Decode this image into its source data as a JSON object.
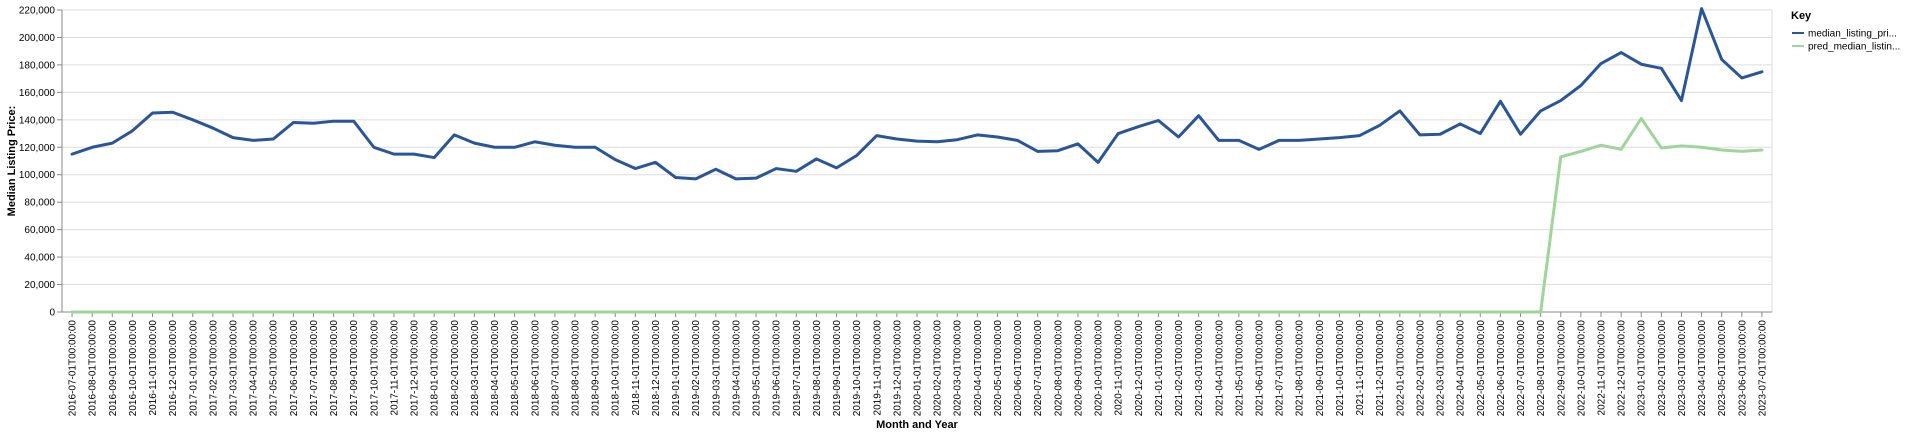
{
  "chart_data": {
    "type": "line",
    "xlabel": "Month and Year",
    "ylabel": "Median Listing Price:",
    "ylim": [
      0,
      220000
    ],
    "y_ticks": [
      0,
      20000,
      40000,
      60000,
      80000,
      100000,
      120000,
      140000,
      160000,
      180000,
      200000,
      220000
    ],
    "y_tick_labels": [
      "0",
      "20,000",
      "40,000",
      "60,000",
      "80,000",
      "100,000",
      "120,000",
      "140,000",
      "160,000",
      "180,000",
      "200,000",
      "220,000"
    ],
    "grid": true,
    "legend": {
      "title": "Key",
      "position": "right"
    },
    "x": [
      "2016-07-01T00:00:00",
      "2016-08-01T00:00:00",
      "2016-09-01T00:00:00",
      "2016-10-01T00:00:00",
      "2016-11-01T00:00:00",
      "2016-12-01T00:00:00",
      "2017-01-01T00:00:00",
      "2017-02-01T00:00:00",
      "2017-03-01T00:00:00",
      "2017-04-01T00:00:00",
      "2017-05-01T00:00:00",
      "2017-06-01T00:00:00",
      "2017-07-01T00:00:00",
      "2017-08-01T00:00:00",
      "2017-09-01T00:00:00",
      "2017-10-01T00:00:00",
      "2017-11-01T00:00:00",
      "2017-12-01T00:00:00",
      "2018-01-01T00:00:00",
      "2018-02-01T00:00:00",
      "2018-03-01T00:00:00",
      "2018-04-01T00:00:00",
      "2018-05-01T00:00:00",
      "2018-06-01T00:00:00",
      "2018-07-01T00:00:00",
      "2018-08-01T00:00:00",
      "2018-09-01T00:00:00",
      "2018-10-01T00:00:00",
      "2018-11-01T00:00:00",
      "2018-12-01T00:00:00",
      "2019-01-01T00:00:00",
      "2019-02-01T00:00:00",
      "2019-03-01T00:00:00",
      "2019-04-01T00:00:00",
      "2019-05-01T00:00:00",
      "2019-06-01T00:00:00",
      "2019-07-01T00:00:00",
      "2019-08-01T00:00:00",
      "2019-09-01T00:00:00",
      "2019-10-01T00:00:00",
      "2019-11-01T00:00:00",
      "2019-12-01T00:00:00",
      "2020-01-01T00:00:00",
      "2020-02-01T00:00:00",
      "2020-03-01T00:00:00",
      "2020-04-01T00:00:00",
      "2020-05-01T00:00:00",
      "2020-06-01T00:00:00",
      "2020-07-01T00:00:00",
      "2020-08-01T00:00:00",
      "2020-09-01T00:00:00",
      "2020-10-01T00:00:00",
      "2020-11-01T00:00:00",
      "2020-12-01T00:00:00",
      "2021-01-01T00:00:00",
      "2021-02-01T00:00:00",
      "2021-03-01T00:00:00",
      "2021-04-01T00:00:00",
      "2021-05-01T00:00:00",
      "2021-06-01T00:00:00",
      "2021-07-01T00:00:00",
      "2021-08-01T00:00:00",
      "2021-09-01T00:00:00",
      "2021-10-01T00:00:00",
      "2021-11-01T00:00:00",
      "2021-12-01T00:00:00",
      "2022-01-01T00:00:00",
      "2022-02-01T00:00:00",
      "2022-03-01T00:00:00",
      "2022-04-01T00:00:00",
      "2022-05-01T00:00:00",
      "2022-06-01T00:00:00",
      "2022-07-01T00:00:00",
      "2022-08-01T00:00:00",
      "2022-09-01T00:00:00",
      "2022-10-01T00:00:00",
      "2022-11-01T00:00:00",
      "2022-12-01T00:00:00",
      "2023-01-01T00:00:00",
      "2023-02-01T00:00:00",
      "2023-03-01T00:00:00",
      "2023-04-01T00:00:00",
      "2023-05-01T00:00:00",
      "2023-06-01T00:00:00",
      "2023-07-01T00:00:00"
    ],
    "series": [
      {
        "name": "median_listing_pri...",
        "color": "#2a5596",
        "values": [
          115000,
          120000,
          123000,
          132000,
          145000,
          145500,
          140000,
          134000,
          127000,
          125000,
          126000,
          138000,
          137500,
          139000,
          139000,
          120000,
          115000,
          115000,
          112500,
          129000,
          123000,
          120000,
          120000,
          124000,
          121500,
          120000,
          120000,
          111000,
          104500,
          109000,
          98000,
          97000,
          104000,
          97000,
          97500,
          104500,
          102500,
          111500,
          105000,
          114000,
          128500,
          126000,
          124500,
          124000,
          125500,
          129000,
          127500,
          125000,
          117000,
          117500,
          122500,
          109000,
          130000,
          135000,
          139500,
          127500,
          143000,
          125000,
          125000,
          118500,
          125000,
          125000,
          126000,
          127000,
          128500,
          136000,
          146500,
          129000,
          129500,
          137000,
          130000,
          153500,
          129500,
          146500,
          154000,
          165000,
          181000,
          189000,
          180500,
          177500,
          154000,
          221000,
          184000,
          170500,
          175000
        ]
      },
      {
        "name": "pred_median_listin...",
        "color": "#9fd49a",
        "values": [
          0,
          0,
          0,
          0,
          0,
          0,
          0,
          0,
          0,
          0,
          0,
          0,
          0,
          0,
          0,
          0,
          0,
          0,
          0,
          0,
          0,
          0,
          0,
          0,
          0,
          0,
          0,
          0,
          0,
          0,
          0,
          0,
          0,
          0,
          0,
          0,
          0,
          0,
          0,
          0,
          0,
          0,
          0,
          0,
          0,
          0,
          0,
          0,
          0,
          0,
          0,
          0,
          0,
          0,
          0,
          0,
          0,
          0,
          0,
          0,
          0,
          0,
          0,
          0,
          0,
          0,
          0,
          0,
          0,
          0,
          0,
          0,
          0,
          0,
          113000,
          117000,
          121500,
          118500,
          141000,
          119500,
          121000,
          120000,
          118000,
          117000,
          118000
        ]
      }
    ]
  }
}
